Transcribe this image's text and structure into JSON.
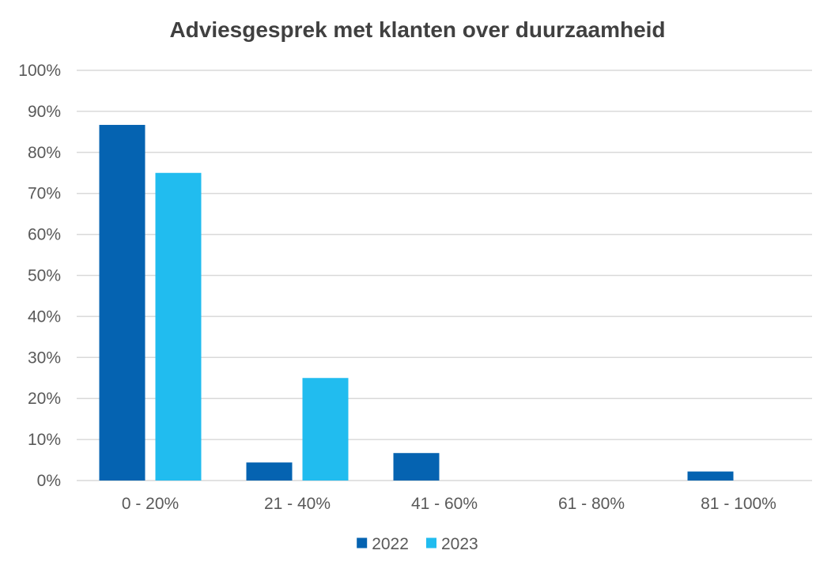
{
  "chart_data": {
    "type": "bar",
    "title": "Adviesgesprek met klanten over duurzaamheid",
    "categories": [
      "0 - 20%",
      "21 - 40%",
      "41 - 60%",
      "61 - 80%",
      "81 - 100%"
    ],
    "series": [
      {
        "name": "2022",
        "color": "#0563B1",
        "values": [
          86.7,
          4.4,
          6.7,
          0,
          2.2
        ]
      },
      {
        "name": "2023",
        "color": "#21BCEF",
        "values": [
          75,
          25,
          0,
          0,
          0
        ]
      }
    ],
    "ylim": [
      0,
      100
    ],
    "y_ticks": [
      0,
      10,
      20,
      30,
      40,
      50,
      60,
      70,
      80,
      90,
      100
    ],
    "y_tick_suffix": "%",
    "grid": true,
    "legend": "bottom-center",
    "gridline_color": "#D9D9D9",
    "text_color": "#595959"
  }
}
